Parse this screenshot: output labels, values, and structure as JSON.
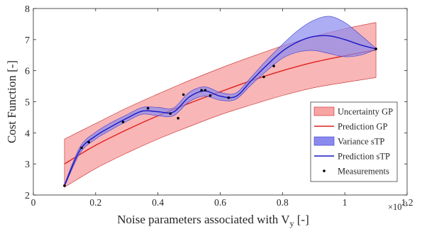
{
  "chart_data": {
    "type": "line",
    "xlabel": "Noise parameters associated with V",
    "xlabel_sub": "y",
    "xlabel_unit": " [-]",
    "x_exponent_base": "×10",
    "x_exponent_power": "-3",
    "ylabel": "Cost Function [-]",
    "xlim": [
      0,
      0.0012
    ],
    "ylim": [
      2,
      8
    ],
    "x_ticks": [
      0,
      0.0002,
      0.0004,
      0.0006,
      0.0008,
      0.001,
      0.0012
    ],
    "x_tick_labels": [
      "0",
      "0.2",
      "0.4",
      "0.6",
      "0.8",
      "1",
      "1.2"
    ],
    "y_ticks": [
      2,
      3,
      4,
      5,
      6,
      7,
      8
    ],
    "y_tick_labels": [
      "2",
      "3",
      "4",
      "5",
      "6",
      "7",
      "8"
    ],
    "grid": false,
    "legend_position": "bottom-right",
    "colors": {
      "uncertainty_gp_fill": "#f7a4a4",
      "uncertainty_gp_edge": "#c82828",
      "prediction_gp": "#e02020",
      "variance_stp_fill": "#8a8aee",
      "variance_stp_edge": "#3b3bc8",
      "prediction_stp": "#1616c8",
      "measurements": "#000000"
    },
    "series": [
      {
        "name": "Uncertainty GP",
        "kind": "band",
        "x": [
          0.0001,
          0.0002,
          0.0003,
          0.0004,
          0.0005,
          0.0006,
          0.0007,
          0.0008,
          0.0009,
          0.001,
          0.0011
        ],
        "lower": [
          2.25,
          2.85,
          3.35,
          3.8,
          4.2,
          4.58,
          4.9,
          5.2,
          5.45,
          5.62,
          5.78
        ],
        "upper": [
          3.8,
          4.3,
          4.8,
          5.25,
          5.68,
          6.08,
          6.45,
          6.8,
          7.1,
          7.35,
          7.55
        ]
      },
      {
        "name": "Prediction GP",
        "kind": "line",
        "x": [
          0.0001,
          0.0002,
          0.0003,
          0.0004,
          0.0005,
          0.0006,
          0.0007,
          0.0008,
          0.0009,
          0.001,
          0.0011
        ],
        "y": [
          3.0,
          3.6,
          4.1,
          4.55,
          4.95,
          5.32,
          5.68,
          6.0,
          6.27,
          6.48,
          6.67
        ]
      },
      {
        "name": "Variance sTP",
        "kind": "band",
        "x": [
          0.0001,
          0.00015,
          0.0002,
          0.00025,
          0.0003,
          0.00035,
          0.0004,
          0.00045,
          0.0005,
          0.00055,
          0.0006,
          0.00065,
          0.0007,
          0.00075,
          0.0008,
          0.00085,
          0.0009,
          0.00095,
          0.001,
          0.00105,
          0.0011
        ],
        "lower": [
          2.27,
          3.35,
          3.8,
          4.1,
          4.37,
          4.6,
          4.55,
          4.55,
          5.0,
          5.18,
          5.05,
          5.08,
          5.55,
          6.0,
          6.4,
          6.6,
          6.65,
          6.55,
          6.45,
          6.5,
          6.68
        ],
        "upper": [
          2.35,
          3.55,
          4.02,
          4.33,
          4.58,
          4.82,
          4.82,
          4.8,
          5.3,
          5.48,
          5.3,
          5.28,
          5.8,
          6.35,
          6.85,
          7.3,
          7.62,
          7.75,
          7.55,
          7.15,
          6.72
        ]
      },
      {
        "name": "Prediction sTP",
        "kind": "line",
        "x": [
          0.0001,
          0.00015,
          0.0002,
          0.00025,
          0.0003,
          0.00035,
          0.0004,
          0.00045,
          0.0005,
          0.00055,
          0.0006,
          0.00065,
          0.0007,
          0.00075,
          0.0008,
          0.00085,
          0.0009,
          0.00095,
          0.001,
          0.00105,
          0.0011
        ],
        "y": [
          2.3,
          3.45,
          3.9,
          4.2,
          4.47,
          4.7,
          4.68,
          4.67,
          5.15,
          5.35,
          5.18,
          5.17,
          5.68,
          6.18,
          6.63,
          6.93,
          7.1,
          7.12,
          7.0,
          6.83,
          6.7
        ]
      },
      {
        "name": "Measurements",
        "kind": "scatter",
        "x": [
          0.0001,
          0.000155,
          0.000178,
          0.000288,
          0.000368,
          0.00044,
          0.000465,
          0.000482,
          0.00054,
          0.000552,
          0.000568,
          0.000627,
          0.00074,
          0.000772,
          0.0011
        ],
        "y": [
          2.3,
          3.52,
          3.7,
          4.35,
          4.79,
          4.62,
          4.47,
          5.23,
          5.37,
          5.37,
          5.2,
          5.13,
          5.8,
          6.15,
          6.7
        ]
      }
    ]
  }
}
